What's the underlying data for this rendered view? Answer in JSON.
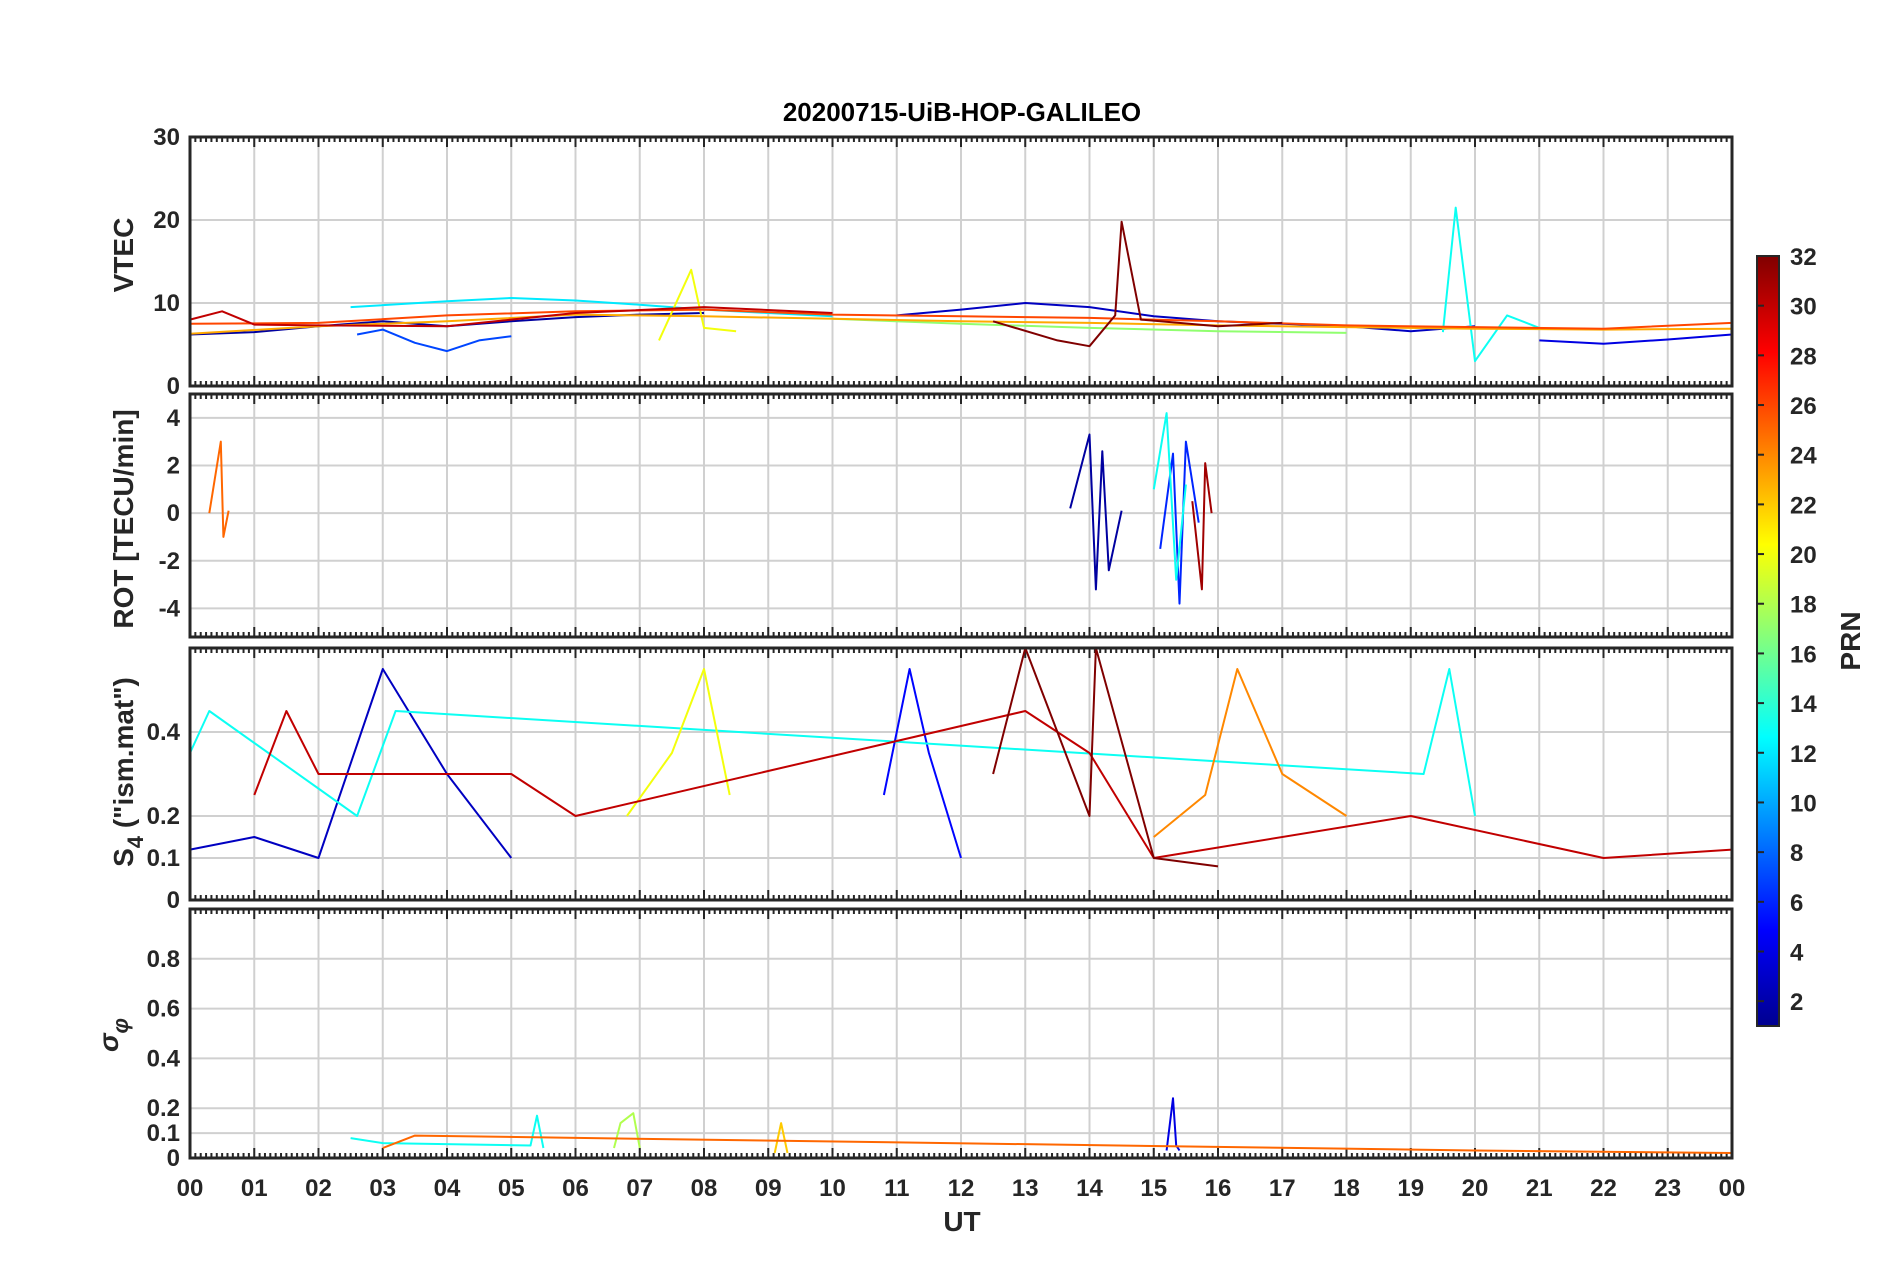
{
  "chart_data": [
    {
      "type": "line",
      "panel": "vtec",
      "title": "20200715-UiB-HOP-GALILEO",
      "ylabel": "VTEC",
      "ylim": [
        0,
        30
      ],
      "yticks": [
        "0",
        "10",
        "20",
        "30"
      ],
      "x_range_hours": [
        0,
        24
      ],
      "series_note": "colored by PRN",
      "series": [
        {
          "prn": 2,
          "x": [
            0,
            1,
            2,
            3,
            4,
            5,
            6,
            7,
            8
          ],
          "y": [
            6.2,
            6.5,
            7.2,
            7.8,
            7.2,
            7.8,
            8.3,
            8.6,
            8.8
          ]
        },
        {
          "prn": 3,
          "x": [
            11,
            12,
            13,
            14,
            15,
            16,
            17,
            18,
            19,
            20
          ],
          "y": [
            8.5,
            9.2,
            10.0,
            9.5,
            8.4,
            7.8,
            7.5,
            7.2,
            6.6,
            7.2
          ]
        },
        {
          "prn": 4,
          "x": [
            21,
            22,
            23,
            24
          ],
          "y": [
            5.5,
            5.1,
            5.6,
            6.2
          ]
        },
        {
          "prn": 7,
          "x": [
            2.6,
            3,
            3.5,
            4,
            4.5,
            5
          ],
          "y": [
            6.2,
            6.8,
            5.2,
            4.2,
            5.5,
            6.0
          ]
        },
        {
          "prn": 12,
          "x": [
            2.5,
            4,
            5,
            6,
            7,
            8,
            9,
            10
          ],
          "y": [
            9.5,
            10.2,
            10.6,
            10.3,
            9.8,
            9.2,
            8.8,
            8.4
          ]
        },
        {
          "prn": 13,
          "x": [
            19.5,
            19.7,
            20,
            20.5,
            21
          ],
          "y": [
            6.5,
            21.5,
            3.0,
            8.5,
            7.0
          ]
        },
        {
          "prn": 17,
          "x": [
            10,
            12,
            14,
            16,
            18
          ],
          "y": [
            8.1,
            7.5,
            7.0,
            6.6,
            6.4
          ]
        },
        {
          "prn": 20,
          "x": [
            7.3,
            7.8,
            8,
            8.5
          ],
          "y": [
            5.5,
            14.0,
            7.0,
            6.6
          ]
        },
        {
          "prn": 23,
          "x": [
            0,
            2,
            4,
            6,
            8,
            10,
            12,
            14,
            16,
            18,
            20,
            22,
            24
          ],
          "y": [
            6.3,
            7.2,
            7.8,
            8.6,
            8.4,
            8.1,
            7.8,
            7.6,
            7.3,
            7.1,
            6.9,
            6.8,
            6.9
          ]
        },
        {
          "prn": 26,
          "x": [
            0,
            2,
            4,
            6,
            8,
            10,
            12,
            14,
            16,
            18,
            20,
            22,
            24
          ],
          "y": [
            7.5,
            7.6,
            8.5,
            9.0,
            9.2,
            8.6,
            8.4,
            8.2,
            7.8,
            7.3,
            7.1,
            6.9,
            7.6
          ]
        },
        {
          "prn": 30,
          "x": [
            0,
            0.5,
            1,
            2,
            4,
            6,
            8,
            10
          ],
          "y": [
            8.0,
            9.0,
            7.4,
            7.3,
            7.2,
            8.8,
            9.5,
            8.8
          ]
        },
        {
          "prn": 32,
          "x": [
            12.5,
            13.5,
            14,
            14.4,
            14.5,
            14.8,
            16,
            17
          ],
          "y": [
            7.8,
            5.5,
            4.8,
            8.5,
            19.8,
            8.0,
            7.2,
            7.6
          ]
        }
      ]
    },
    {
      "type": "line",
      "panel": "rot",
      "ylabel": "ROT [TECU/min]",
      "ylim": [
        -5.2,
        5
      ],
      "yticks": [
        "-4",
        "-2",
        "0",
        "2",
        "4"
      ],
      "x_range_hours": [
        0,
        24
      ],
      "series": [
        {
          "prn": 2,
          "x": [
            13.7,
            14,
            14.1,
            14.2,
            14.3,
            14.5
          ],
          "y": [
            0.2,
            3.3,
            -3.2,
            2.6,
            -2.4,
            0.1
          ]
        },
        {
          "prn": 6,
          "x": [
            15.1,
            15.3,
            15.4,
            15.5,
            15.7
          ],
          "y": [
            -1.5,
            2.5,
            -3.8,
            3.0,
            -0.4
          ]
        },
        {
          "prn": 13,
          "x": [
            15.0,
            15.2,
            15.35,
            15.5
          ],
          "y": [
            1.0,
            4.2,
            -2.8,
            1.2
          ]
        },
        {
          "prn": 25,
          "x": [
            0.3,
            0.48,
            0.52,
            0.6
          ],
          "y": [
            0.0,
            3.0,
            -1.0,
            0.1
          ]
        },
        {
          "prn": 31,
          "x": [
            15.6,
            15.75,
            15.8,
            15.9
          ],
          "y": [
            0.5,
            -3.2,
            2.1,
            0.0
          ]
        }
      ]
    },
    {
      "type": "line",
      "panel": "s4",
      "ylabel": "S4 (\"ism.mat\")",
      "ylim": [
        0,
        0.6
      ],
      "yticks": [
        "0",
        "0.1",
        "0.2",
        "0.4"
      ],
      "x_range_hours": [
        0,
        24
      ],
      "series": [
        {
          "prn": 3,
          "x": [
            0,
            1,
            2,
            3,
            4,
            5
          ],
          "y": [
            0.12,
            0.15,
            0.1,
            0.55,
            0.3,
            0.1
          ]
        },
        {
          "prn": 5,
          "x": [
            10.8,
            11.2,
            11.5,
            12
          ],
          "y": [
            0.25,
            0.55,
            0.35,
            0.1
          ]
        },
        {
          "prn": 13,
          "x": [
            0,
            0.3,
            2.6,
            3.2,
            19.2,
            19.6,
            20
          ],
          "y": [
            0.35,
            0.45,
            0.2,
            0.45,
            0.3,
            0.55,
            0.2
          ]
        },
        {
          "prn": 20,
          "x": [
            6.8,
            7.5,
            8,
            8.4
          ],
          "y": [
            0.2,
            0.35,
            0.55,
            0.25
          ]
        },
        {
          "prn": 24,
          "x": [
            15,
            15.8,
            16.3,
            17,
            18
          ],
          "y": [
            0.15,
            0.25,
            0.55,
            0.3,
            0.2
          ]
        },
        {
          "prn": 30,
          "x": [
            1,
            1.5,
            2,
            5,
            6,
            13,
            14,
            15,
            19,
            22,
            24
          ],
          "y": [
            0.25,
            0.45,
            0.3,
            0.3,
            0.2,
            0.45,
            0.35,
            0.1,
            0.2,
            0.1,
            0.12
          ]
        },
        {
          "prn": 32,
          "x": [
            12.5,
            13,
            14,
            14.1,
            15,
            16
          ],
          "y": [
            0.3,
            0.6,
            0.2,
            0.6,
            0.1,
            0.08
          ]
        }
      ]
    },
    {
      "type": "line",
      "panel": "sigma_phi",
      "ylabel": "σφ",
      "ylim": [
        0,
        1
      ],
      "yticks": [
        "0",
        "0.1",
        "0.2",
        "0.4",
        "0.6",
        "0.8"
      ],
      "x_range_hours": [
        0,
        24
      ],
      "series": [
        {
          "prn": 4,
          "x": [
            15.2,
            15.3,
            15.35,
            15.4
          ],
          "y": [
            0.03,
            0.24,
            0.05,
            0.03
          ]
        },
        {
          "prn": 13,
          "x": [
            2.5,
            3,
            5.3,
            5.4,
            5.5
          ],
          "y": [
            0.08,
            0.06,
            0.05,
            0.17,
            0.04
          ]
        },
        {
          "prn": 18,
          "x": [
            6.6,
            6.7,
            6.9,
            7.0
          ],
          "y": [
            0.04,
            0.14,
            0.18,
            0.04
          ]
        },
        {
          "prn": 22,
          "x": [
            9.1,
            9.2,
            9.3
          ],
          "y": [
            0.02,
            0.14,
            0.02
          ]
        },
        {
          "prn": 25,
          "x": [
            3,
            3.5,
            20,
            24
          ],
          "y": [
            0.04,
            0.09,
            0.03,
            0.02
          ]
        }
      ]
    }
  ],
  "xaxis": {
    "label": "UT",
    "ticks": [
      "00",
      "01",
      "02",
      "03",
      "04",
      "05",
      "06",
      "07",
      "08",
      "09",
      "10",
      "11",
      "12",
      "13",
      "14",
      "15",
      "16",
      "17",
      "18",
      "19",
      "20",
      "21",
      "22",
      "23",
      "00"
    ]
  },
  "colorbar": {
    "label": "PRN",
    "range": [
      1,
      32
    ],
    "ticks": [
      "2",
      "4",
      "6",
      "8",
      "10",
      "12",
      "14",
      "16",
      "18",
      "20",
      "22",
      "24",
      "26",
      "28",
      "30",
      "32"
    ],
    "colormap": "jet"
  },
  "panel_labels": {
    "vtec": "VTEC",
    "rot": "ROT [TECU/min]",
    "s4_main": "S",
    "s4_sub": "4",
    "s4_rest": " (\"ism.mat\")",
    "sigma_main": "σ",
    "sigma_sub": "φ"
  }
}
